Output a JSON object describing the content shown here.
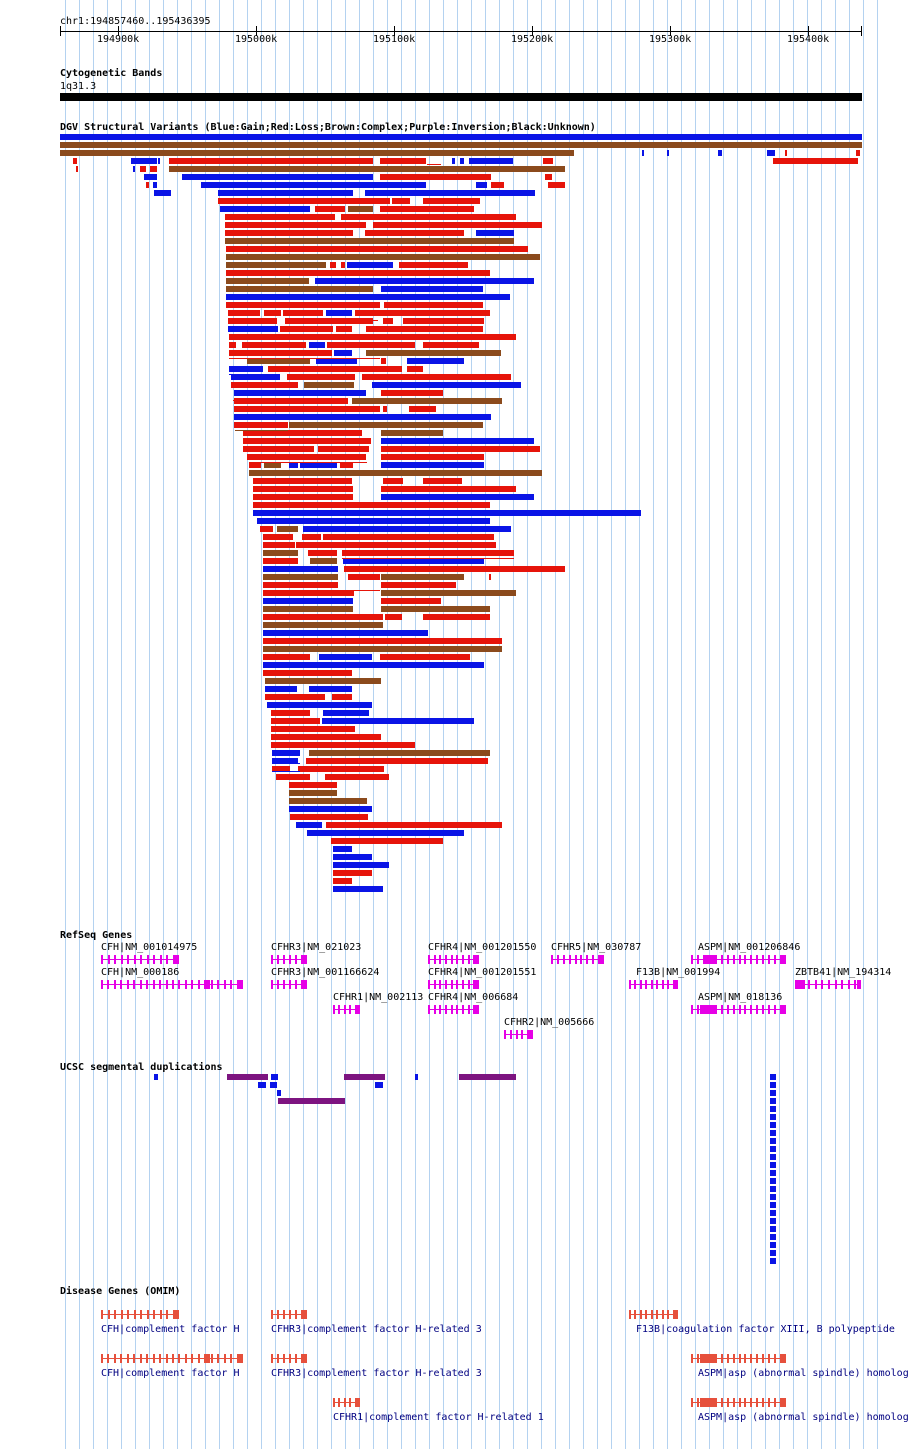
{
  "window": {
    "title": "chr1:194857460..195436395"
  },
  "ruler": {
    "ticks": [
      "194900k",
      "195000k",
      "195100k",
      "195200k",
      "195300k",
      "195400k"
    ]
  },
  "tracks": {
    "cytoband": {
      "title": "Cytogenetic Bands",
      "band": "1q31.3"
    },
    "dgv": {
      "title": "DGV Structural Variants (Blue:Gain;Red:Loss;Brown:Complex;Purple:Inversion;Black:Unknown)"
    },
    "refseq": {
      "title": "RefSeq Genes",
      "genes": [
        {
          "label": "CFH|NM_001014975"
        },
        {
          "label": "CFHR3|NM_021023"
        },
        {
          "label": "CFHR4|NM_001201550"
        },
        {
          "label": "CFHR5|NM_030787"
        },
        {
          "label": "ASPM|NM_001206846"
        },
        {
          "label": "CFH|NM_000186"
        },
        {
          "label": "CFHR3|NM_001166624"
        },
        {
          "label": "CFHR4|NM_001201551"
        },
        {
          "label": "F13B|NM_001994"
        },
        {
          "label": "ZBTB41|NM_194314"
        },
        {
          "label": "CFHR1|NM_002113"
        },
        {
          "label": "CFHR4|NM_006684"
        },
        {
          "label": "ASPM|NM_018136"
        },
        {
          "label": "CFHR2|NM_005666"
        }
      ]
    },
    "segdup": {
      "title": "UCSC segmental duplications"
    },
    "omim": {
      "title": "Disease Genes (OMIM)",
      "genes": [
        {
          "label": "CFH|complement factor H"
        },
        {
          "label": "CFHR3|complement factor H-related 3"
        },
        {
          "label": "F13B|coagulation factor XIII, B polypeptide"
        },
        {
          "label": "CFH|complement factor H"
        },
        {
          "label": "CFHR3|complement factor H-related 3"
        },
        {
          "label": "ASPM|asp (abnormal spindle) homolog"
        },
        {
          "label": "CFHR1|complement factor H-related 1"
        },
        {
          "label": "ASPM|asp (abnormal spindle) homolog"
        }
      ]
    }
  },
  "colors": {
    "gain": "#0a14e6",
    "loss": "#e6140a",
    "complex": "#8b4a1c",
    "segdup_purple": "#7d1480",
    "refseq": "#e600e6",
    "omim": "#e6503c",
    "omim_text": "#000080",
    "grid": "#b4d2f0"
  }
}
